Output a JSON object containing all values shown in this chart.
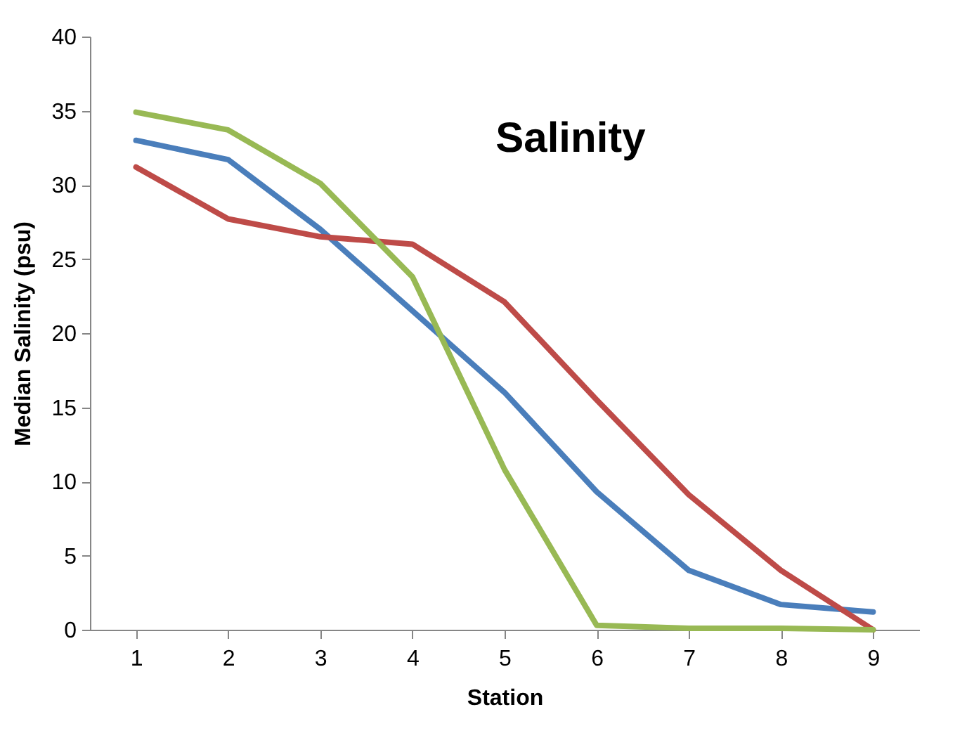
{
  "chart_data": {
    "type": "line",
    "title": "Salinity",
    "xlabel": "Station",
    "ylabel": "Median Salinity (psu)",
    "categories": [
      "1",
      "2",
      "3",
      "4",
      "5",
      "6",
      "7",
      "8",
      "9"
    ],
    "series": [
      {
        "color": "#4a7ebb",
        "values": [
          33,
          31.7,
          27,
          21.5,
          16,
          9.3,
          4,
          1.7,
          1.2
        ]
      },
      {
        "color": "#be4b48",
        "values": [
          31.2,
          27.7,
          26.5,
          26,
          22.1,
          15.5,
          9.1,
          4,
          0
        ]
      },
      {
        "color": "#98b954",
        "values": [
          34.9,
          33.7,
          30.1,
          23.8,
          10.8,
          0.3,
          0.1,
          0.1,
          0
        ]
      }
    ],
    "ylim": [
      0,
      40
    ],
    "yticks": [
      0,
      5,
      10,
      15,
      20,
      25,
      30,
      35,
      40
    ],
    "grid": false
  }
}
